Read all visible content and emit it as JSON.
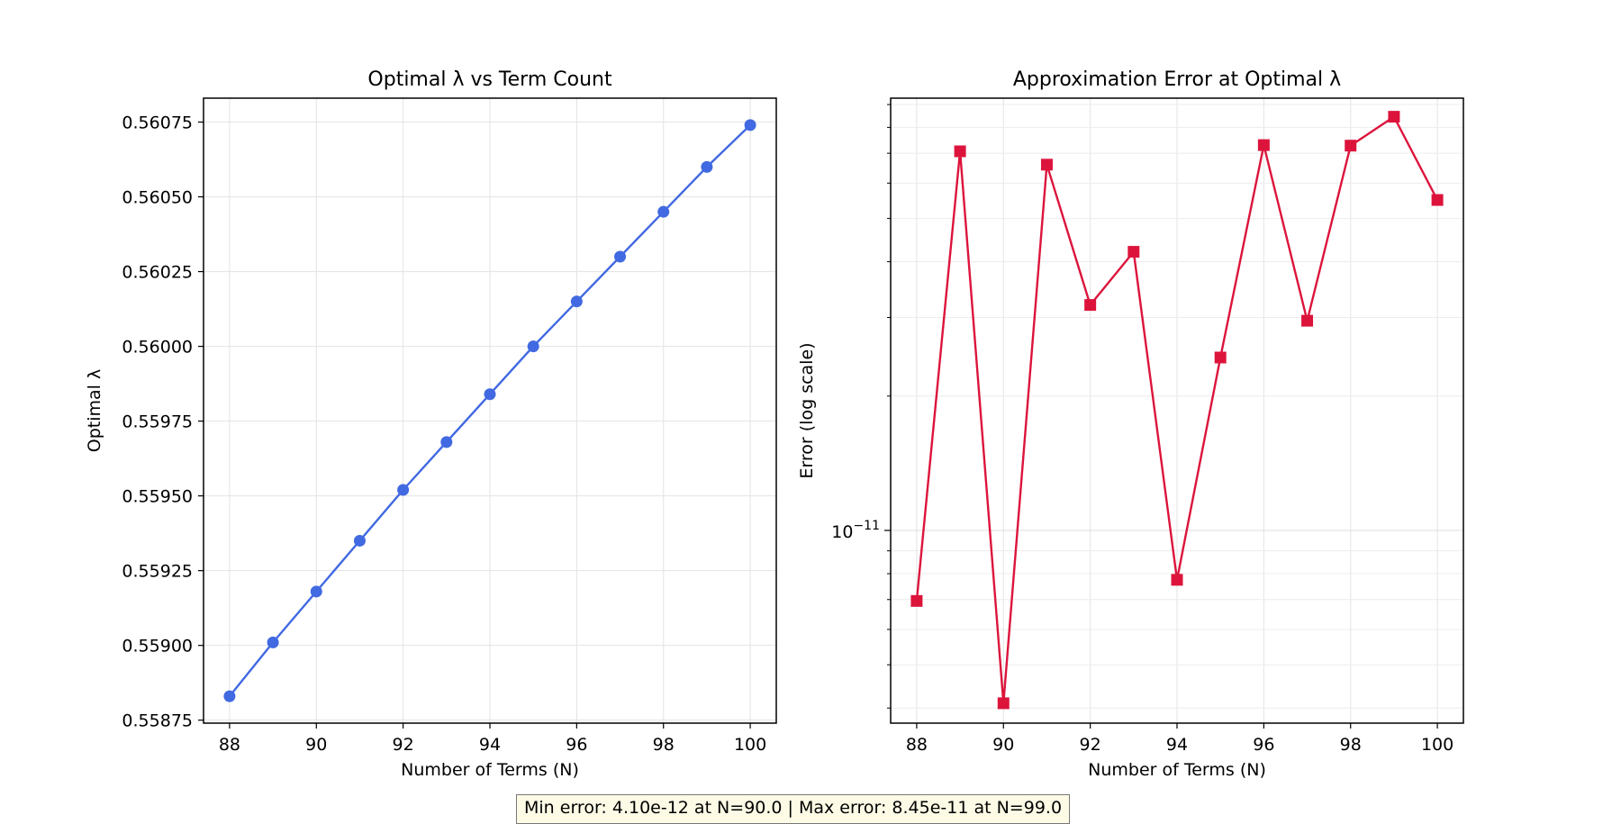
{
  "chart_data": [
    {
      "type": "line",
      "title": "Optimal λ vs Term Count",
      "xlabel": "Number of Terms (N)",
      "ylabel": "Optimal λ",
      "xlim": [
        87.4,
        100.6
      ],
      "ylim": [
        0.55874,
        0.56083
      ],
      "x_ticks": [
        88,
        90,
        92,
        94,
        96,
        98,
        100
      ],
      "y_ticks": [
        0.55875,
        0.559,
        0.55925,
        0.5595,
        0.55975,
        0.56,
        0.56025,
        0.5605,
        0.56075
      ],
      "y_tick_labels": [
        "0.55875",
        "0.55900",
        "0.55925",
        "0.55950",
        "0.55975",
        "0.56000",
        "0.56025",
        "0.56050",
        "0.56075"
      ],
      "grid": true,
      "color": "#4169e1",
      "marker": "circle",
      "series": [
        {
          "x": [
            88,
            89,
            90,
            91,
            92,
            93,
            94,
            95,
            96,
            97,
            98,
            99,
            100
          ],
          "values": [
            0.55883,
            0.55901,
            0.55918,
            0.55935,
            0.55952,
            0.55968,
            0.55984,
            0.56,
            0.56015,
            0.5603,
            0.56045,
            0.5606,
            0.56074
          ]
        }
      ]
    },
    {
      "type": "line",
      "title": "Approximation Error at Optimal λ",
      "xlabel": "Number of Terms (N)",
      "ylabel": "Error (log scale)",
      "yscale": "log",
      "xlim": [
        87.4,
        100.6
      ],
      "ylim": [
        3.7e-12,
        9.3e-11
      ],
      "x_ticks": [
        88,
        90,
        92,
        94,
        96,
        98,
        100
      ],
      "y_major_ticks": [
        1e-11
      ],
      "y_major_tick_labels": [
        {
          "base": "10",
          "exp": "−11"
        }
      ],
      "y_minor_ticks": [
        4e-12,
        5e-12,
        6e-12,
        7e-12,
        8e-12,
        9e-12,
        2e-11,
        3e-11,
        4e-11,
        5e-11,
        6e-11,
        7e-11,
        8e-11,
        9e-11
      ],
      "grid": true,
      "color": "#dc143c",
      "marker": "square",
      "series": [
        {
          "x": [
            88,
            89,
            90,
            91,
            92,
            93,
            94,
            95,
            96,
            97,
            98,
            99,
            100
          ],
          "values": [
            6.95e-12,
            7.07e-11,
            4.1e-12,
            6.6e-11,
            3.2e-11,
            4.21e-11,
            7.75e-12,
            2.44e-11,
            7.3e-11,
            2.95e-11,
            7.28e-11,
            8.45e-11,
            5.5e-11
          ]
        }
      ]
    }
  ],
  "footer": {
    "summary": "Min error: 4.10e-12 at N=90.0 | Max error: 8.45e-11 at N=99.0"
  }
}
